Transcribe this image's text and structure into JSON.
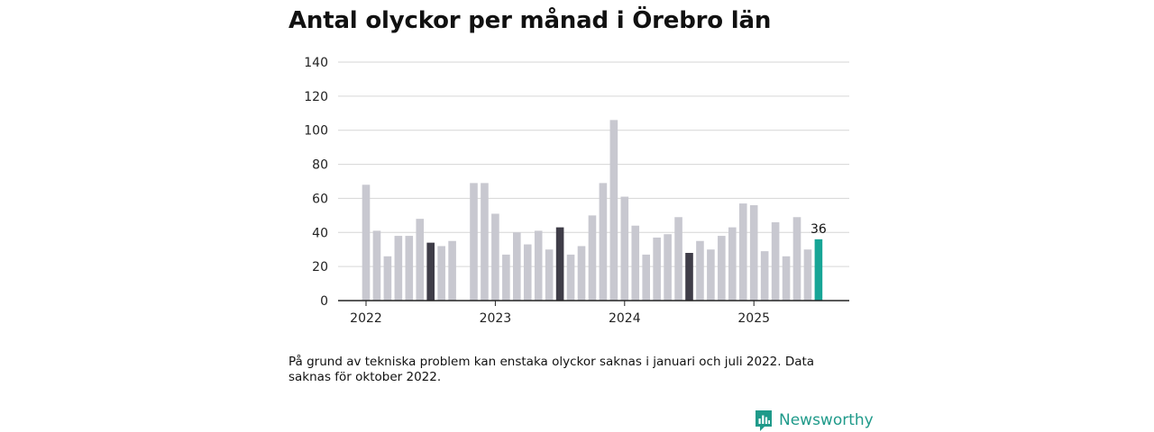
{
  "title": "Antal olyckor per månad i Örebro län",
  "note": "På grund av tekniska problem kan enstaka olyckor saknas i januari och juli 2022. Data saknas för oktober 2022.",
  "brand": {
    "name": "Newsworthy",
    "icon": "newsworthy-logo-icon"
  },
  "colors": {
    "bar": "#c8c8d0",
    "july": "#3f3d48",
    "latest": "#17a596",
    "grid": "#d6d6d6",
    "axis": "#222222",
    "brand": "#1f9a8a"
  },
  "chart_data": {
    "type": "bar",
    "title": "Antal olyckor per månad i Örebro län",
    "xlabel": "",
    "ylabel": "",
    "ylim": [
      0,
      140
    ],
    "yticks": [
      0,
      20,
      40,
      60,
      80,
      100,
      120,
      140
    ],
    "xtick_labels": [
      "2022",
      "2023",
      "2024",
      "2025"
    ],
    "grid": true,
    "categories": [
      "2022-01",
      "2022-02",
      "2022-03",
      "2022-04",
      "2022-05",
      "2022-06",
      "2022-07",
      "2022-08",
      "2022-09",
      "2022-10",
      "2022-11",
      "2022-12",
      "2023-01",
      "2023-02",
      "2023-03",
      "2023-04",
      "2023-05",
      "2023-06",
      "2023-07",
      "2023-08",
      "2023-09",
      "2023-10",
      "2023-11",
      "2023-12",
      "2024-01",
      "2024-02",
      "2024-03",
      "2024-04",
      "2024-05",
      "2024-06",
      "2024-07",
      "2024-08",
      "2024-09",
      "2024-10",
      "2024-11",
      "2024-12",
      "2025-01",
      "2025-02",
      "2025-03",
      "2025-04",
      "2025-05",
      "2025-06",
      "2025-07"
    ],
    "values": [
      68,
      41,
      26,
      38,
      38,
      48,
      34,
      32,
      35,
      null,
      69,
      69,
      51,
      27,
      40,
      33,
      41,
      30,
      43,
      27,
      32,
      50,
      69,
      106,
      61,
      44,
      27,
      37,
      39,
      49,
      28,
      35,
      30,
      38,
      43,
      57,
      56,
      29,
      46,
      26,
      49,
      30,
      36
    ],
    "highlighted": [
      "2022-07",
      "2023-07",
      "2024-07"
    ],
    "latest": "2025-07",
    "data_labels": [
      {
        "category": "2025-07",
        "text": "36"
      }
    ]
  }
}
